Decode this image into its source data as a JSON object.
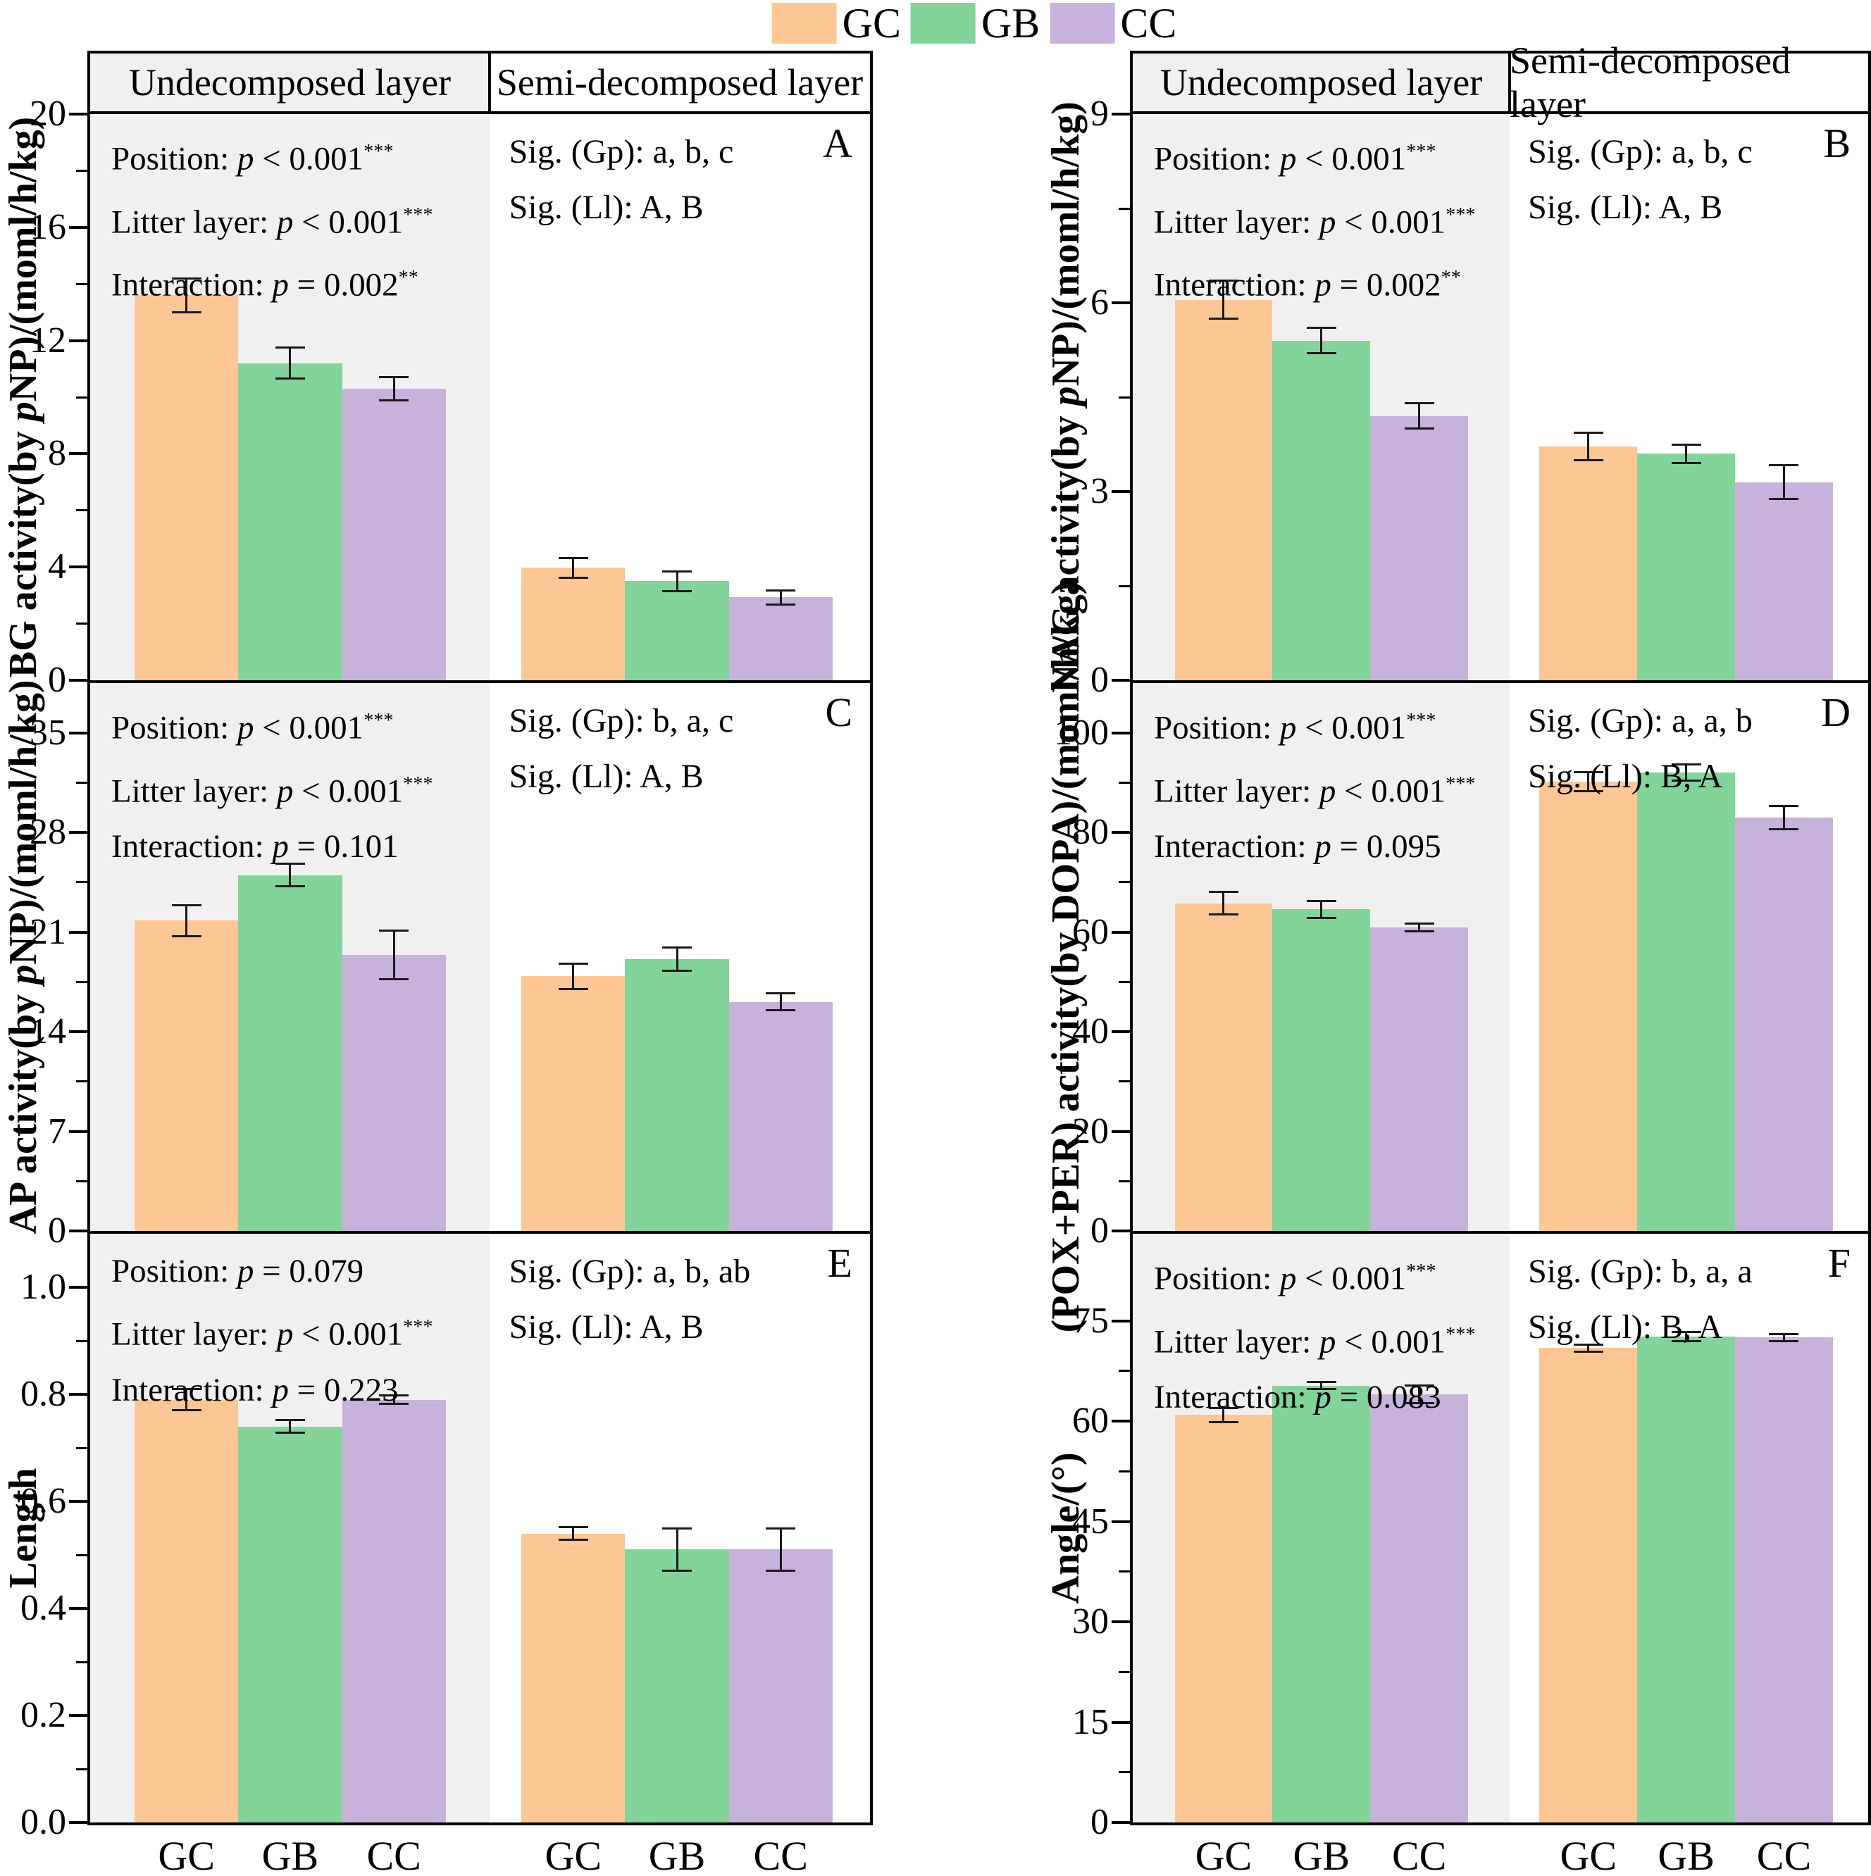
{
  "figure": {
    "legend": [
      {
        "label": "GC",
        "color": "#FDC795"
      },
      {
        "label": "GB",
        "color": "#82D49A"
      },
      {
        "label": "CC",
        "color": "#C6B2DA"
      }
    ],
    "section_headers": [
      "Undecomposed layer",
      "Semi-decomposed layer"
    ],
    "x_categories": [
      "GC",
      "GB",
      "CC"
    ],
    "styles": {
      "section_bg": "#F0F0F0",
      "axis_color": "#000000",
      "error_bar_color": "#1a1a1a"
    }
  },
  "chart_data": [
    {
      "type": "bar",
      "panel": "A",
      "ylabel": "BG activity(by |p|NP)/(moml/h/kg)",
      "ylim": [
        0,
        20
      ],
      "ymax_display": 20,
      "yticks": [
        0,
        4,
        8,
        12,
        16,
        20
      ],
      "tick_decimals": 0,
      "grid": false,
      "legend_position": "top-center",
      "categories": [
        "GC",
        "GB",
        "CC"
      ],
      "series": [
        {
          "name": "Undecomposed layer",
          "values": [
            13.6,
            11.2,
            10.3
          ],
          "errors": [
            0.6,
            0.55,
            0.4
          ]
        },
        {
          "name": "Semi-decomposed layer",
          "values": [
            3.97,
            3.5,
            2.93
          ],
          "errors": [
            0.35,
            0.35,
            0.25
          ]
        }
      ],
      "stats": [
        {
          "name": "Position",
          "rel": "<",
          "value": "0.001",
          "stars": "***"
        },
        {
          "name": "Litter layer",
          "rel": "<",
          "value": "0.001",
          "stars": "***"
        },
        {
          "name": "Interaction",
          "rel": "=",
          "value": "0.002",
          "stars": "**"
        }
      ],
      "sig": [
        "Sig. (Gp): a, b, c",
        "Sig. (Ll): A, B"
      ]
    },
    {
      "type": "bar",
      "panel": "B",
      "ylabel": "NAG activity(by |p|NP)/(moml/h/kg)",
      "ylim": [
        0,
        9
      ],
      "ymax_display": 9,
      "yticks": [
        0,
        3,
        6,
        9
      ],
      "tick_decimals": 0,
      "grid": false,
      "legend_position": "top-center",
      "categories": [
        "GC",
        "GB",
        "CC"
      ],
      "series": [
        {
          "name": "Undecomposed layer",
          "values": [
            6.05,
            5.4,
            4.2
          ],
          "errors": [
            0.3,
            0.2,
            0.2
          ]
        },
        {
          "name": "Semi-decomposed layer",
          "values": [
            3.72,
            3.6,
            3.15
          ],
          "errors": [
            0.22,
            0.15,
            0.27
          ]
        }
      ],
      "stats": [
        {
          "name": "Position",
          "rel": "<",
          "value": "0.001",
          "stars": "***"
        },
        {
          "name": "Litter layer",
          "rel": "<",
          "value": "0.001",
          "stars": "***"
        },
        {
          "name": "Interaction",
          "rel": "=",
          "value": "0.002",
          "stars": "**"
        }
      ],
      "sig": [
        "Sig. (Gp): a, b, c",
        "Sig. (Ll): A, B"
      ]
    },
    {
      "type": "bar",
      "panel": "C",
      "ylabel": "AP activity(by |p|NP)/(moml/h/kg)",
      "ylim": [
        0,
        35
      ],
      "ymax_display": 38.5,
      "yticks": [
        0,
        7,
        14,
        21,
        28,
        35
      ],
      "tick_decimals": 0,
      "grid": false,
      "legend_position": "top-center",
      "categories": [
        "GC",
        "GB",
        "CC"
      ],
      "series": [
        {
          "name": "Undecomposed layer",
          "values": [
            21.8,
            25.0,
            19.4
          ],
          "errors": [
            1.1,
            0.8,
            1.7
          ]
        },
        {
          "name": "Semi-decomposed layer",
          "values": [
            17.9,
            19.1,
            16.1
          ],
          "errors": [
            0.9,
            0.8,
            0.6
          ]
        }
      ],
      "stats": [
        {
          "name": "Position",
          "rel": "<",
          "value": "0.001",
          "stars": "***"
        },
        {
          "name": "Litter layer",
          "rel": "<",
          "value": "0.001",
          "stars": "***"
        },
        {
          "name": "Interaction",
          "rel": "=",
          "value": "0.101",
          "stars": ""
        }
      ],
      "sig": [
        "Sig. (Gp): b, a, c",
        "Sig. (Ll): A, B"
      ]
    },
    {
      "type": "bar",
      "panel": "D",
      "ylabel": "(POX+PER) activity(by DOPA)/(moml/h/kg)",
      "ylim": [
        0,
        100
      ],
      "ymax_display": 110,
      "yticks": [
        0,
        20,
        40,
        60,
        80,
        100
      ],
      "tick_decimals": 0,
      "grid": false,
      "legend_position": "top-center",
      "categories": [
        "GC",
        "GB",
        "CC"
      ],
      "series": [
        {
          "name": "Undecomposed layer",
          "values": [
            65.8,
            64.6,
            60.9
          ],
          "errors": [
            2.3,
            1.7,
            0.8
          ]
        },
        {
          "name": "Semi-decomposed layer",
          "values": [
            90.2,
            92.0,
            83.0
          ],
          "errors": [
            1.9,
            1.6,
            2.3
          ]
        }
      ],
      "stats": [
        {
          "name": "Position",
          "rel": "<",
          "value": "0.001",
          "stars": "***"
        },
        {
          "name": "Litter layer",
          "rel": "<",
          "value": "0.001",
          "stars": "***"
        },
        {
          "name": "Interaction",
          "rel": "=",
          "value": "0.095",
          "stars": ""
        }
      ],
      "sig": [
        "Sig. (Gp): a, a, b",
        "Sig. (Ll): B, A"
      ]
    },
    {
      "type": "bar",
      "panel": "E",
      "ylabel": "Length",
      "ylim": [
        0,
        1.0
      ],
      "ymax_display": 1.1,
      "yticks": [
        0,
        0.2,
        0.4,
        0.6,
        0.8,
        1.0
      ],
      "tick_decimals": 1,
      "grid": false,
      "legend_position": "top-center",
      "categories": [
        "GC",
        "GB",
        "CC"
      ],
      "series": [
        {
          "name": "Undecomposed layer",
          "values": [
            0.79,
            0.74,
            0.79
          ],
          "errors": [
            0.02,
            0.012,
            0.008
          ]
        },
        {
          "name": "Semi-decomposed layer",
          "values": [
            0.54,
            0.51,
            0.51
          ],
          "errors": [
            0.012,
            0.04,
            0.04
          ]
        }
      ],
      "stats": [
        {
          "name": "Position",
          "rel": "=",
          "value": "0.079",
          "stars": ""
        },
        {
          "name": "Litter layer",
          "rel": "<",
          "value": "0.001",
          "stars": "***"
        },
        {
          "name": "Interaction",
          "rel": "=",
          "value": "0.223",
          "stars": ""
        }
      ],
      "sig": [
        "Sig. (Gp): a, b, ab",
        "Sig. (Ll): A, B"
      ]
    },
    {
      "type": "bar",
      "panel": "F",
      "ylabel": "Angle/(°)",
      "ylim": [
        0,
        75
      ],
      "ymax_display": 88,
      "yticks": [
        0,
        15,
        30,
        45,
        60,
        75
      ],
      "tick_decimals": 0,
      "grid": false,
      "legend_position": "top-center",
      "categories": [
        "GC",
        "GB",
        "CC"
      ],
      "series": [
        {
          "name": "Undecomposed layer",
          "values": [
            60.9,
            65.3,
            64.0
          ],
          "errors": [
            1.1,
            0.5,
            1.3
          ]
        },
        {
          "name": "Semi-decomposed layer",
          "values": [
            70.9,
            72.6,
            72.5
          ],
          "errors": [
            0.5,
            0.7,
            0.5
          ]
        }
      ],
      "stats": [
        {
          "name": "Position",
          "rel": "<",
          "value": "0.001",
          "stars": "***"
        },
        {
          "name": "Litter layer",
          "rel": "<",
          "value": "0.001",
          "stars": "***"
        },
        {
          "name": "Interaction",
          "rel": "=",
          "value": "0.083",
          "stars": ""
        }
      ],
      "sig": [
        "Sig. (Gp): b, a, a",
        "Sig. (Ll): B, A"
      ]
    }
  ]
}
